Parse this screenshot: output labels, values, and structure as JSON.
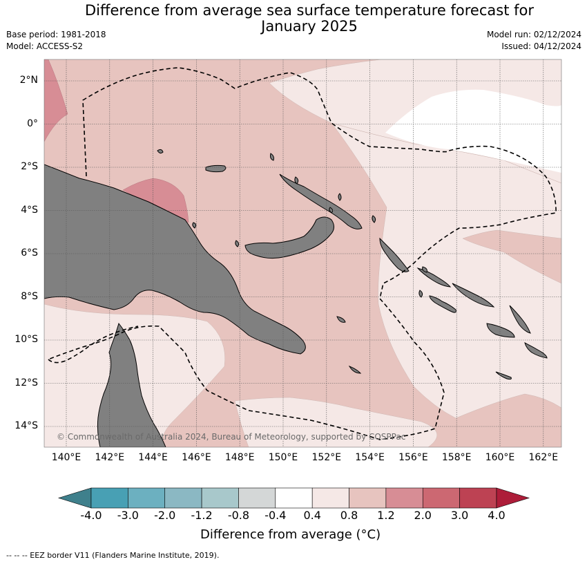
{
  "title": {
    "line1": "Difference from average sea surface temperature forecast for",
    "line2": "January 2025"
  },
  "meta": {
    "base_period": "Base period: 1981-2018",
    "model": "Model: ACCESS-S2",
    "model_run": "Model run: 02/12/2024",
    "issued": "Issued: 04/12/2024"
  },
  "map": {
    "lat_labels": [
      "2°N",
      "0°",
      "2°S",
      "4°S",
      "6°S",
      "8°S",
      "10°S",
      "12°S",
      "14°S"
    ],
    "lon_labels": [
      "140°E",
      "142°E",
      "144°E",
      "146°E",
      "148°E",
      "150°E",
      "152°E",
      "154°E",
      "156°E",
      "158°E",
      "160°E",
      "162°E"
    ],
    "land_color": "#808080",
    "copyright": "© Commonwealth of Australia 2024, Bureau of Meteorology, supported by COSPPac"
  },
  "colorbar": {
    "tick_labels": [
      "-4.0",
      "-3.0",
      "-2.0",
      "-1.2",
      "-0.8",
      "-0.4",
      "0.4",
      "0.8",
      "1.2",
      "2.0",
      "3.0",
      "4.0"
    ],
    "colors": [
      "#3f808c",
      "#48a0b4",
      "#6cb0c0",
      "#8bb8c3",
      "#a8c8cb",
      "#d4d7d7",
      "#ffffff",
      "#f5e8e6",
      "#e7c4bf",
      "#d78d95",
      "#cc6872",
      "#bd4253",
      "#ad1d39"
    ],
    "title": "Difference from average (°C)"
  },
  "footnote": "--  --  -- EEZ border V11 (Flanders Marine Institute, 2019)."
}
